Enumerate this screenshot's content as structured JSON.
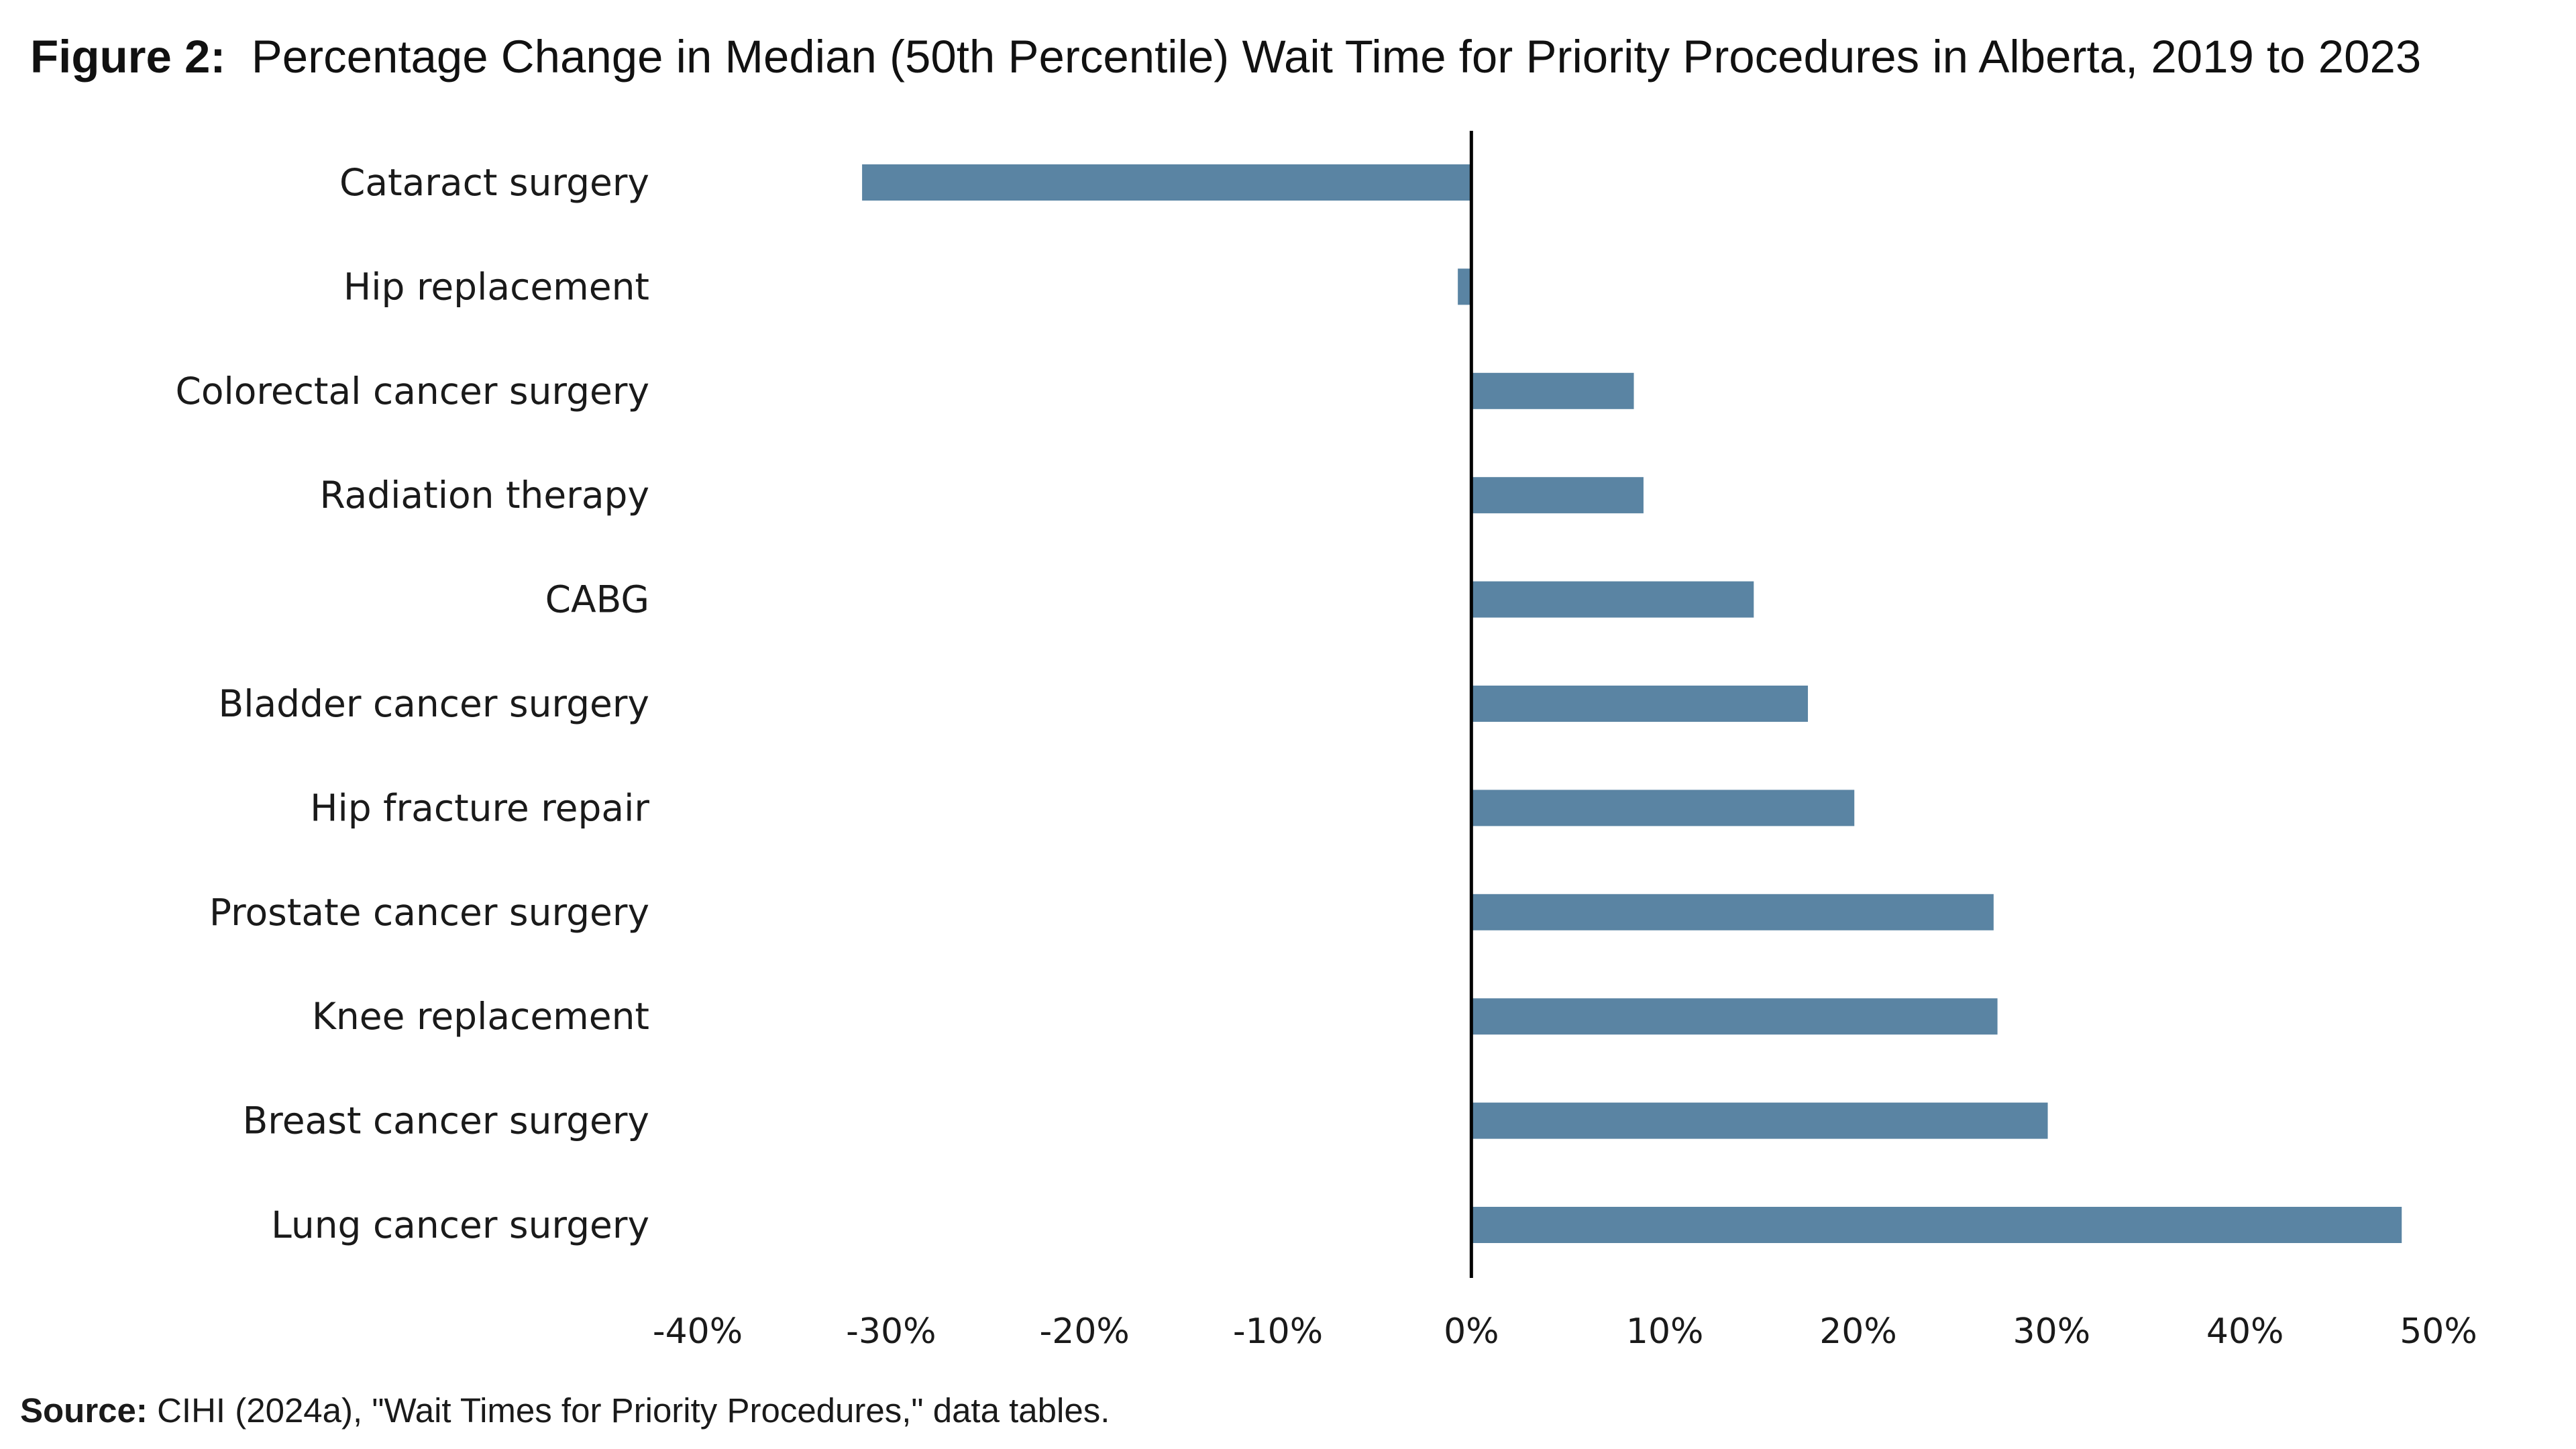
{
  "figure": {
    "label": "Figure 2:",
    "title": "Percentage Change in Median (50th Percentile) Wait Time for Priority Procedures in Alberta, 2019 to 2023"
  },
  "source": {
    "label": "Source:",
    "text": "CIHI (2024a), \"Wait Times for Priority Procedures,\" data tables."
  },
  "colors": {
    "bar": "#5a84a3",
    "axis": "#000000"
  },
  "chart_data": {
    "type": "bar",
    "orientation": "horizontal",
    "title": "Percentage Change in Median (50th Percentile) Wait Time for Priority Procedures in Alberta, 2019 to 2023",
    "xlabel": "",
    "ylabel": "",
    "categories": [
      "Cataract surgery",
      "Hip replacement",
      "Colorectal cancer surgery",
      "Radiation therapy",
      "CABG",
      "Bladder cancer surgery",
      "Hip fracture repair",
      "Prostate cancer surgery",
      "Knee replacement",
      "Breast cancer surgery",
      "Lung cancer surgery"
    ],
    "values": [
      -31.5,
      -0.7,
      8.4,
      8.9,
      14.6,
      17.4,
      19.8,
      27.0,
      27.2,
      29.8,
      48.1
    ],
    "xlim": [
      -40,
      50
    ],
    "xticks": [
      -40,
      -30,
      -20,
      -10,
      0,
      10,
      20,
      30,
      40,
      50
    ],
    "xtick_labels": [
      "-40%",
      "-30%",
      "-20%",
      "-10%",
      "0%",
      "10%",
      "20%",
      "30%",
      "40%",
      "50%"
    ],
    "grid": false,
    "legend": "none"
  }
}
